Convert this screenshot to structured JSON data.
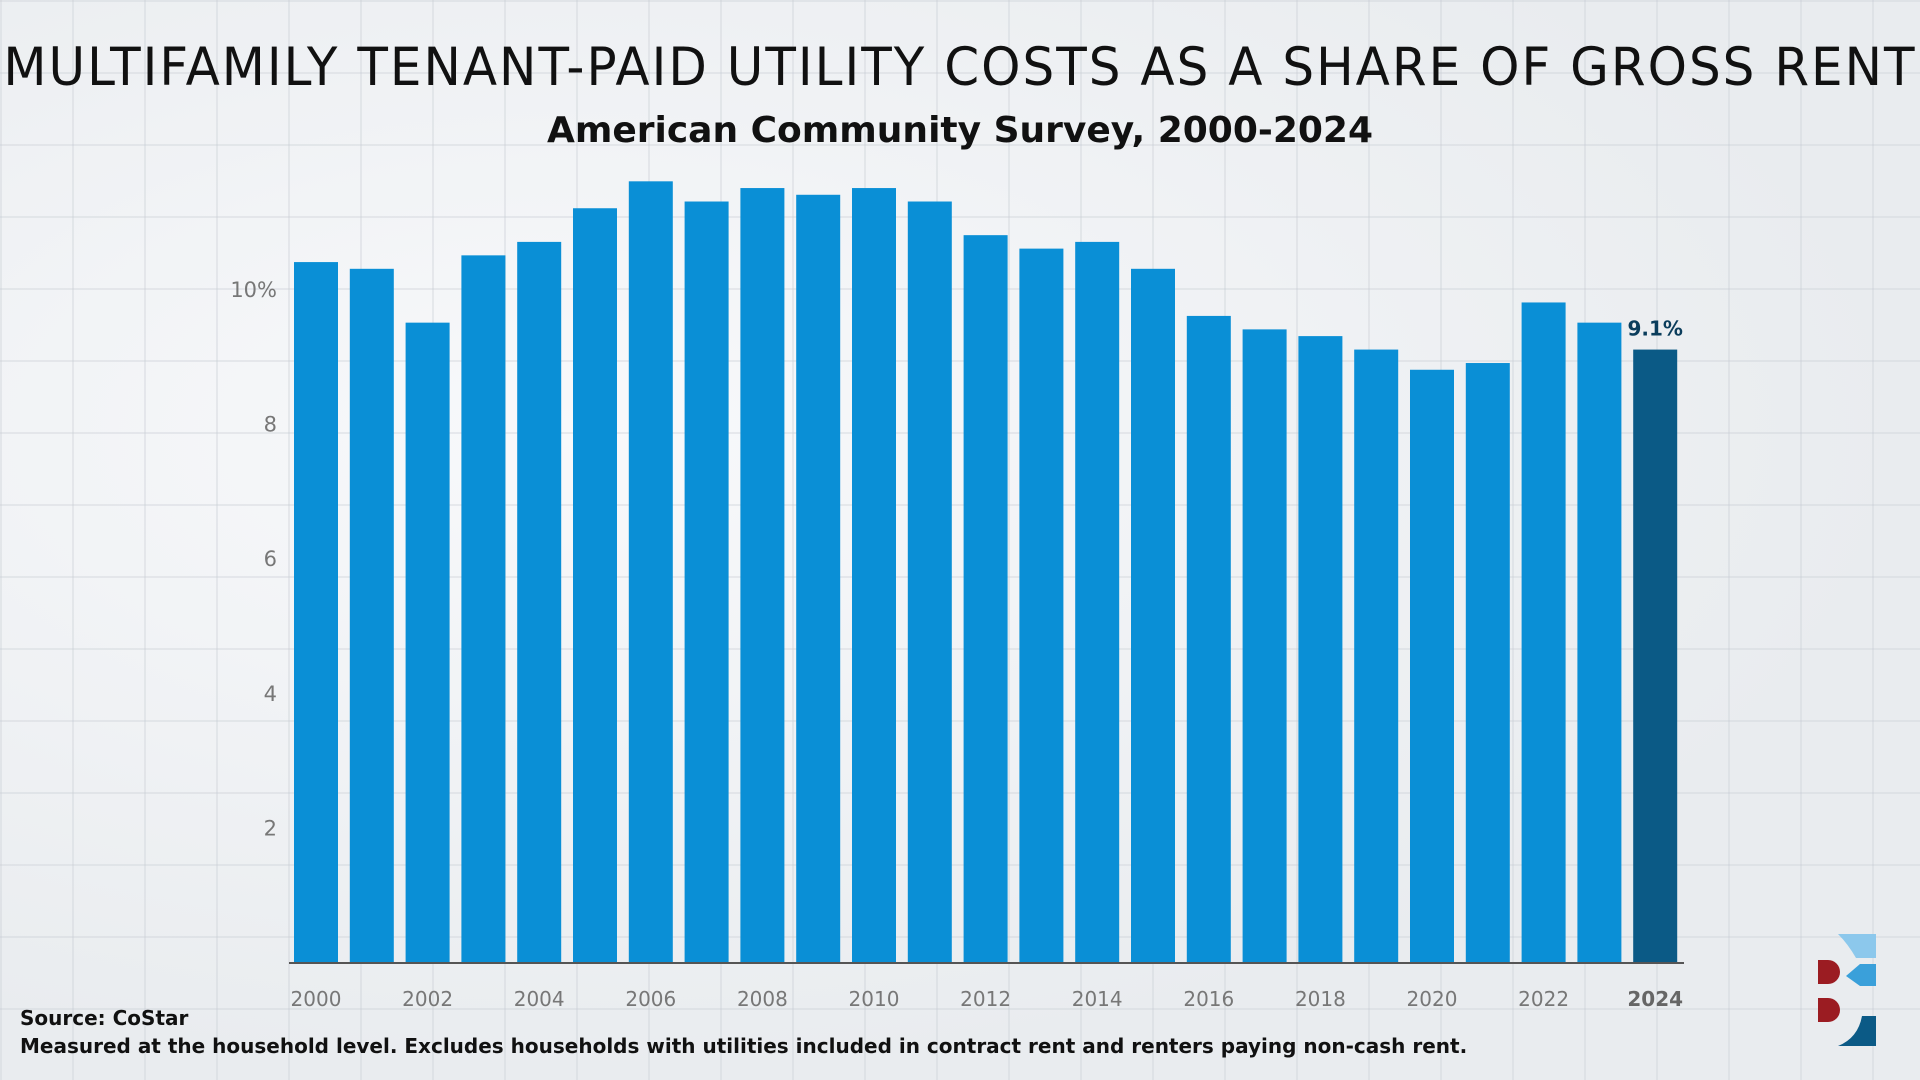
{
  "header": {
    "title": "MULTIFAMILY TENANT-PAID UTILITY COSTS AS A SHARE OF GROSS RENT",
    "subtitle": "American Community Survey, 2000-2024"
  },
  "footer": {
    "source": "Source: CoStar",
    "note": "Measured at the household level. Excludes households with utilities included in contract rent and renters paying non-cash rent."
  },
  "colors": {
    "bar": "#0a8fd6",
    "highlight": "#0b5a86",
    "label": "#0b3d5c",
    "logo_red": "#9b1c22",
    "logo_light": "#8cc8ec",
    "logo_mid": "#3aa0da",
    "logo_dark": "#0b5a86"
  },
  "chart_data": {
    "type": "bar",
    "title": "MULTIFAMILY TENANT-PAID UTILITY COSTS AS A SHARE OF GROSS RENT",
    "subtitle": "American Community Survey, 2000-2024",
    "xlabel": "",
    "ylabel": "",
    "ylim": [
      0,
      12
    ],
    "yticks": [
      {
        "value": 2,
        "label": "2"
      },
      {
        "value": 4,
        "label": "4"
      },
      {
        "value": 6,
        "label": "6"
      },
      {
        "value": 8,
        "label": "8"
      },
      {
        "value": 10,
        "label": "10%"
      }
    ],
    "categories": [
      "2000",
      "2001",
      "2002",
      "2003",
      "2004",
      "2005",
      "2006",
      "2007",
      "2008",
      "2009",
      "2010",
      "2011",
      "2012",
      "2013",
      "2014",
      "2015",
      "2016",
      "2017",
      "2018",
      "2019",
      "2020",
      "2021",
      "2022",
      "2023",
      "2024"
    ],
    "values": [
      10.4,
      10.3,
      9.5,
      10.5,
      10.7,
      11.2,
      11.6,
      11.3,
      11.5,
      11.4,
      11.5,
      11.3,
      10.8,
      10.6,
      10.7,
      10.3,
      9.6,
      9.4,
      9.3,
      9.1,
      8.8,
      8.9,
      9.8,
      9.5,
      9.1
    ],
    "xtick_labels": [
      "2000",
      "2002",
      "2004",
      "2006",
      "2008",
      "2010",
      "2012",
      "2014",
      "2016",
      "2018",
      "2020",
      "2022",
      "2024"
    ],
    "highlight": {
      "category": "2024",
      "label": "9.1%"
    },
    "grid": false
  }
}
